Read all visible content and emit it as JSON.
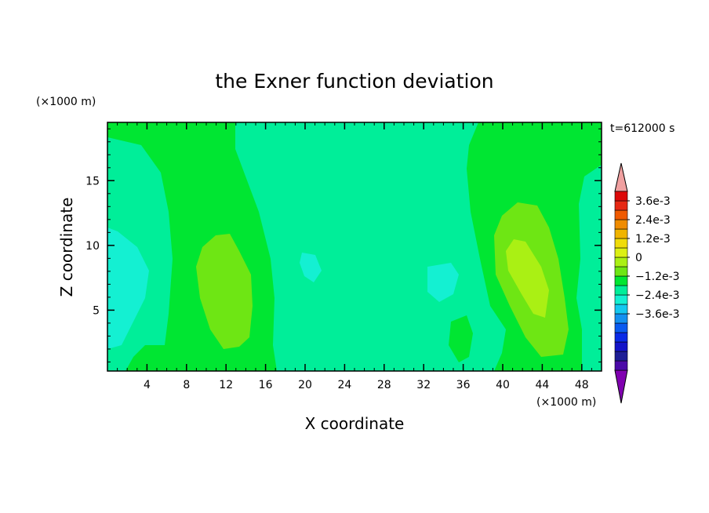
{
  "chart_data": {
    "type": "heatmap",
    "title": "the Exner function deviation",
    "xlabel": "X coordinate",
    "ylabel": "Z coordinate",
    "x_unit": "(×1000 m)",
    "z_unit": "(×1000 m)",
    "time_label": "t=612000 s",
    "xlim": [
      0,
      50
    ],
    "ylim": [
      0.3,
      19.5
    ],
    "x_ticks": [
      "4",
      "8",
      "12",
      "16",
      "20",
      "24",
      "28",
      "32",
      "36",
      "40",
      "44",
      "48"
    ],
    "y_ticks": [
      "5",
      "10",
      "15"
    ],
    "colorbar": {
      "labels": [
        "3.6e-3",
        "2.4e-3",
        "1.2e-3",
        "0",
        "−1.2e-3",
        "−2.4e-3",
        "−3.6e-3"
      ],
      "level_step": 0.0006,
      "colors_low_to_high": [
        "#8000b0",
        "#4b0aa8",
        "#1e1e96",
        "#1414c8",
        "#0a2ae6",
        "#0a5af0",
        "#1490f0",
        "#14c8f0",
        "#14f0d2",
        "#00ee99",
        "#00e632",
        "#6ee614",
        "#aaf014",
        "#dcf014",
        "#f0dc0a",
        "#f0b400",
        "#f08c00",
        "#f05a00",
        "#e62814",
        "#dc0a0a",
        "#f0a0a0"
      ],
      "extend": "both"
    },
    "regions": [
      {
        "level": -0.0006,
        "color": "#00ee99",
        "label": "background"
      },
      {
        "level": 0.0,
        "color": "#00e632",
        "label": "band x≈5-17"
      },
      {
        "level": 0.0006,
        "color": "#6ee614",
        "label": "core x≈12"
      },
      {
        "level": 0.0,
        "color": "#00e632",
        "label": "band x≈36-48"
      },
      {
        "level": 0.0006,
        "color": "#6ee614",
        "label": "core x≈42"
      },
      {
        "level": 0.0012,
        "color": "#aaf014",
        "label": "peak x≈43"
      },
      {
        "level": -0.0012,
        "color": "#14f0d2",
        "label": "left edge x≈1"
      },
      {
        "level": -0.0012,
        "color": "#14f0d2",
        "label": "x≈20"
      },
      {
        "level": -0.0012,
        "color": "#14f0d2",
        "label": "x≈33"
      },
      {
        "level": -0.0006,
        "color": "#00ee99",
        "label": "right edge x≈49"
      }
    ]
  }
}
